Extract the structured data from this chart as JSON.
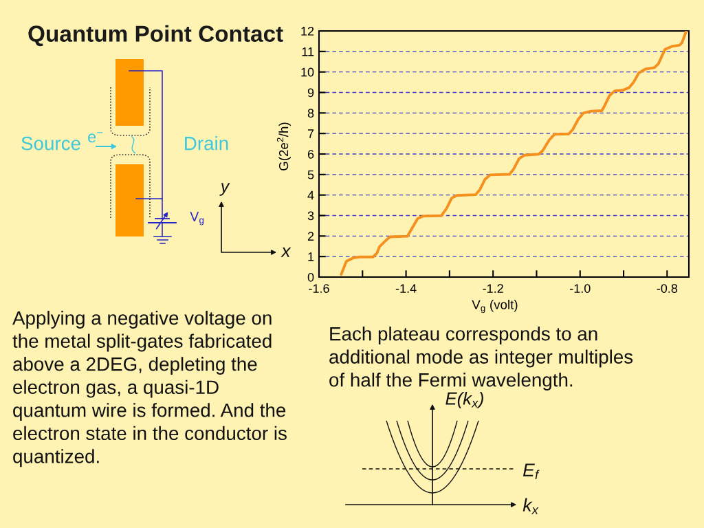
{
  "chart_data": {
    "type": "line",
    "title": "Quantum Point Contact",
    "xlabel": "V$_{g}$ (volt)",
    "ylabel": "G(2e$^{2}$/h)",
    "x": [
      -1.549,
      -1.537,
      -1.521,
      -1.506,
      -1.476,
      -1.467,
      -1.461,
      -1.449,
      -1.437,
      -1.397,
      -1.388,
      -1.373,
      -1.361,
      -1.319,
      -1.307,
      -1.295,
      -1.283,
      -1.24,
      -1.231,
      -1.219,
      -1.207,
      -1.162,
      -1.153,
      -1.14,
      -1.128,
      -1.095,
      -1.086,
      -1.071,
      -1.059,
      -1.026,
      -1.017,
      -1.004,
      -0.992,
      -0.974,
      -0.95,
      -0.944,
      -0.932,
      -0.92,
      -0.902,
      -0.887,
      -0.877,
      -0.865,
      -0.85,
      -0.829,
      -0.82,
      -0.805,
      -0.787,
      -0.772,
      -0.766,
      -0.756
    ],
    "series": [
      {
        "color": "#f5901e",
        "values": [
          0.13,
          0.77,
          0.94,
          0.98,
          0.98,
          1.16,
          1.48,
          1.73,
          1.96,
          1.99,
          2.31,
          2.86,
          2.97,
          2.99,
          3.34,
          3.85,
          3.98,
          4.02,
          4.24,
          4.75,
          4.98,
          5.01,
          5.26,
          5.78,
          5.94,
          5.99,
          6.16,
          6.68,
          6.96,
          6.98,
          7.19,
          7.7,
          8.0,
          8.09,
          8.11,
          8.34,
          8.86,
          9.08,
          9.11,
          9.24,
          9.5,
          9.95,
          10.14,
          10.21,
          10.4,
          11.1,
          11.26,
          11.3,
          11.42,
          12.0
        ]
      }
    ],
    "xlim": [
      -1.6,
      -0.75
    ],
    "ylim": [
      0,
      12
    ],
    "xticks": [
      -1.6,
      {
        "value": -1.5,
        "label": null
      },
      -1.4,
      {
        "value": -1.3,
        "label": null
      },
      -1.2,
      {
        "value": -1.1,
        "label": null
      },
      {
        "value": -1.0,
        "label": "-1.0"
      },
      {
        "value": -0.9,
        "label": null
      },
      -0.8
    ],
    "yticks": [
      0,
      1,
      2,
      3,
      4,
      5,
      6,
      7,
      8,
      9,
      10,
      11,
      12
    ],
    "grid": "y",
    "line_style": "solid",
    "annotations": [
      "Source",
      "e$^{−}$",
      "Drain",
      "V$_{g}$",
      "y",
      "x",
      "Applying a negative voltage on\nthe metal split-gates fabricated\nabove a 2DEG, depleting the\nelectron gas, a quasi-1D\nquantum wire is formed. And the\nelectron state in the conductor is\nquantized.",
      "Each plateau corresponds to an\nadditional mode as integer multiples\nof half the Fermi wavelength.",
      "E(k$_{x}$)",
      "E$_{f}$",
      "k$_{x}$"
    ]
  }
}
